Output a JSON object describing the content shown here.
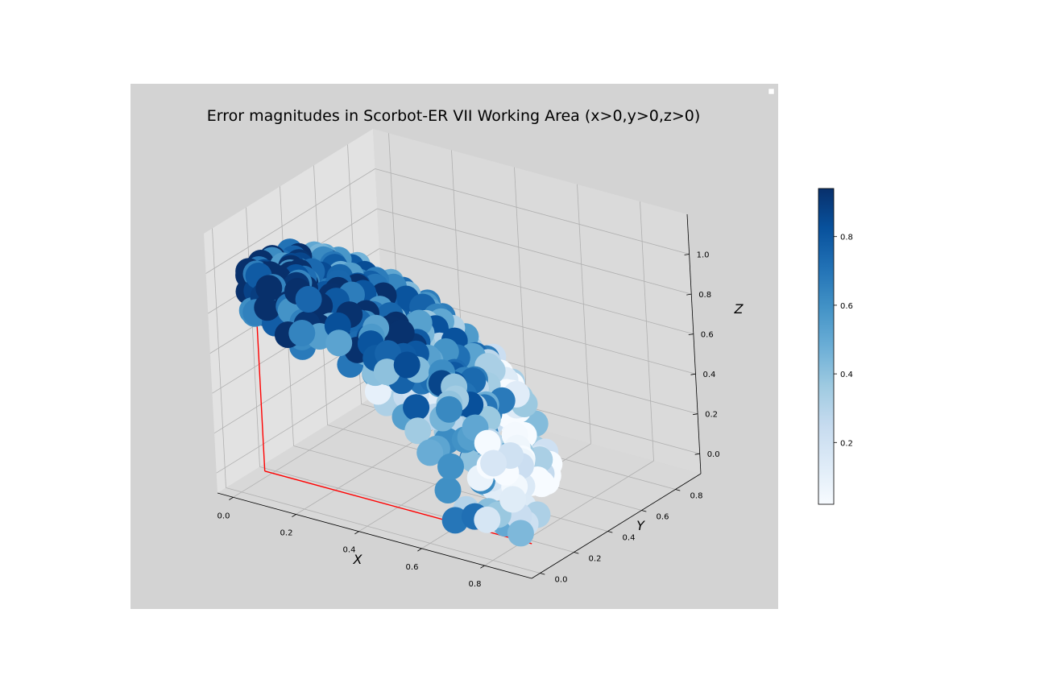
{
  "chart_data": {
    "type": "scatter",
    "projection": "3d",
    "title": "Error magnitudes in Scorbot-ER VII Working Area (x>0,y>0,z>0)",
    "xlabel": "X",
    "ylabel": "Y",
    "zlabel": "Z",
    "xlim": [
      -0.05,
      0.95
    ],
    "ylim": [
      -0.05,
      0.95
    ],
    "zlim": [
      -0.1,
      1.2
    ],
    "xticks": [
      "0.0",
      "0.2",
      "0.4",
      "0.6",
      "0.8"
    ],
    "yticks": [
      "0.0",
      "0.2",
      "0.4",
      "0.6",
      "0.8"
    ],
    "zticks": [
      "0.0",
      "0.2",
      "0.4",
      "0.6",
      "0.8",
      "1.0"
    ],
    "colormap": "Blues",
    "color_range": [
      0.02,
      0.94
    ],
    "colorbar_ticks": [
      "0.2",
      "0.4",
      "0.6",
      "0.8"
    ],
    "grid": true,
    "legend": "top-right",
    "colors": {
      "background": "#d3d3d3",
      "pane_left": "#e2e2e2",
      "pane_right": "#dadada",
      "pane_floor": "#d8d8d8",
      "reference_lines": "#ff0000"
    },
    "point_count": 600,
    "domain": {
      "x_max": 0.85,
      "y_max": 0.85,
      "z_max": 1.05
    }
  }
}
